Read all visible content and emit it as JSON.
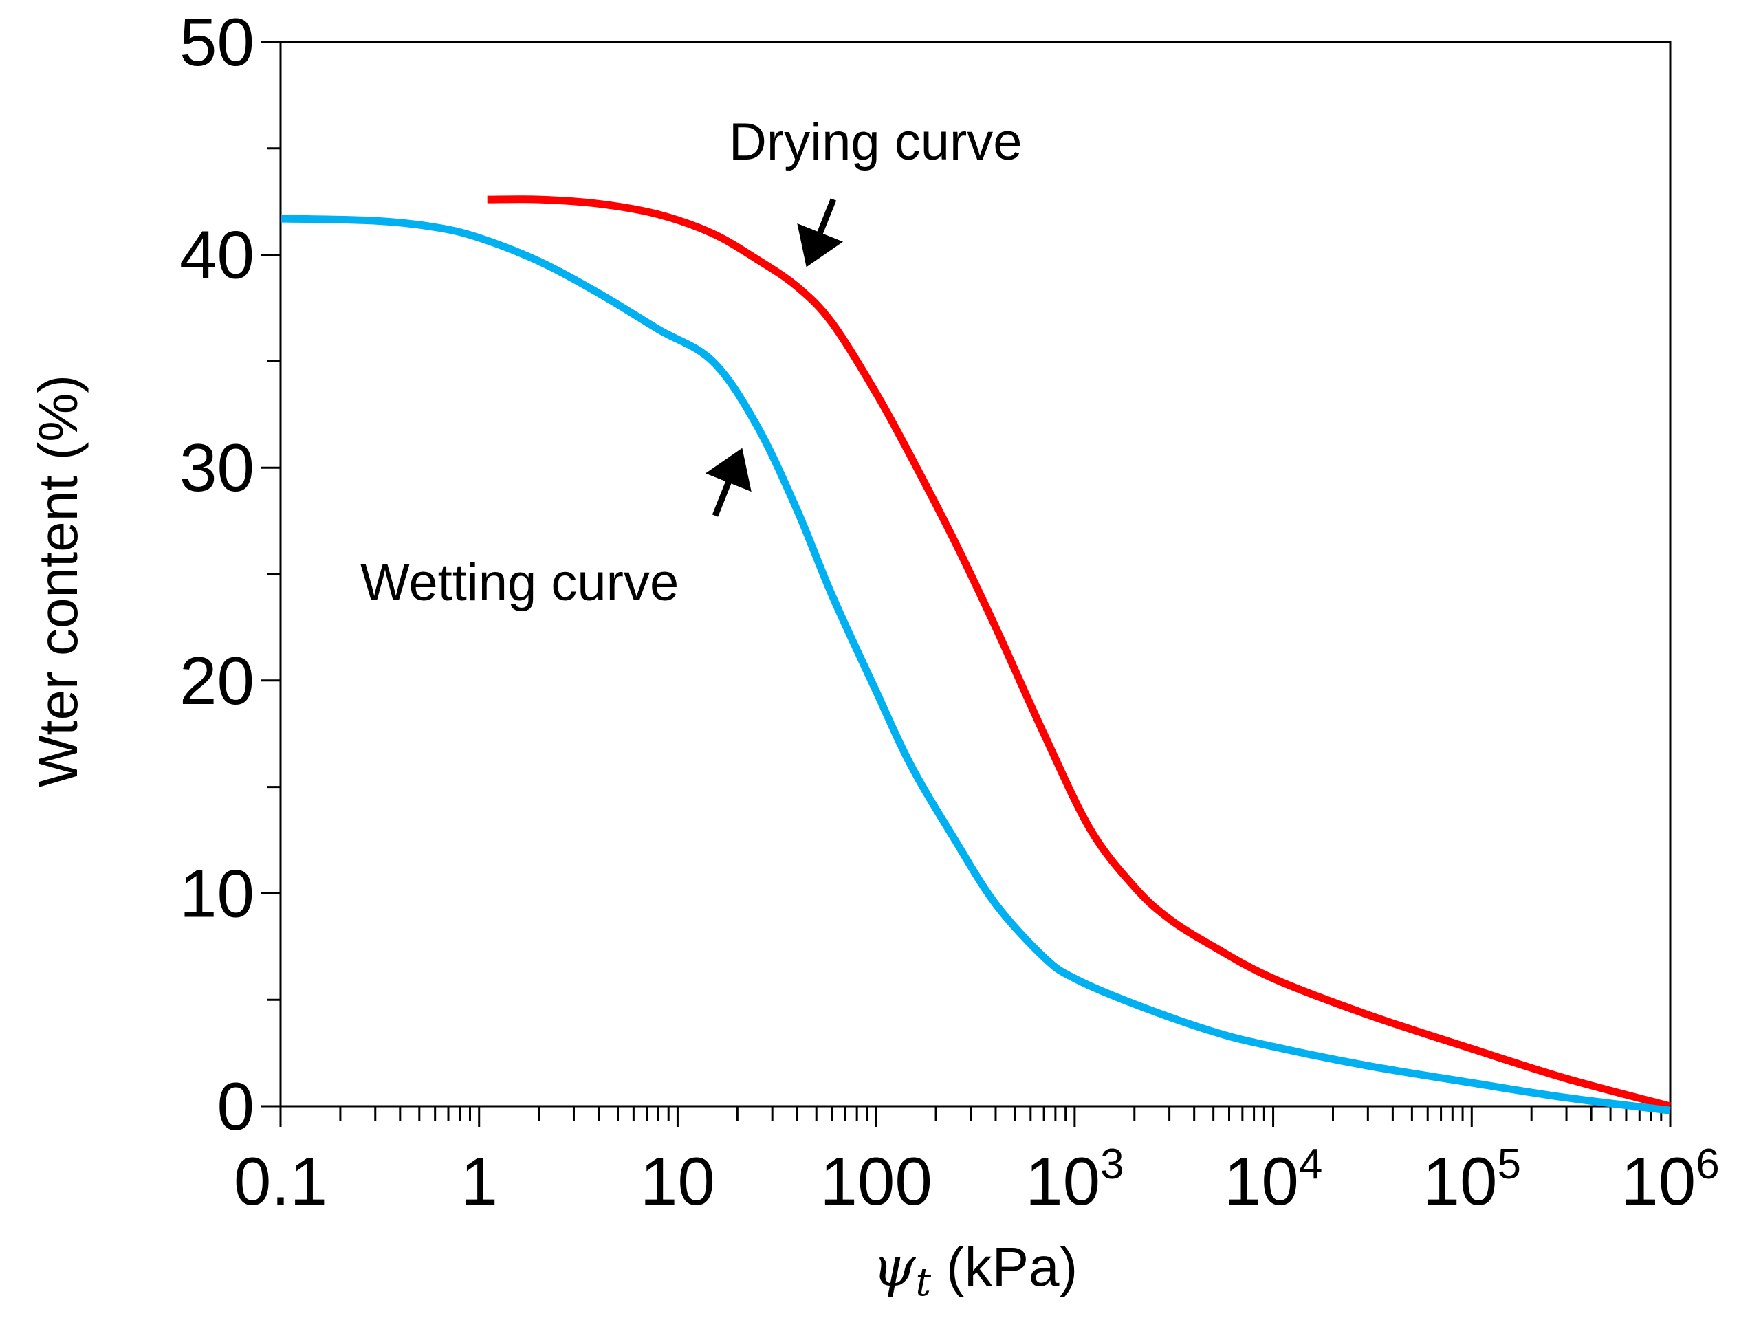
{
  "chart_data": {
    "type": "line",
    "title": "",
    "xlabel": {
      "symbol": "ψ",
      "subscript": "t",
      "unit": "(kPa)"
    },
    "ylabel": "Wter content (%)",
    "xscale": "log",
    "xlim": [
      0.1,
      1000000
    ],
    "ylim": [
      0,
      50
    ],
    "grid": false,
    "x_tick_labels": [
      {
        "base": "0.1",
        "exp": ""
      },
      {
        "base": "1",
        "exp": ""
      },
      {
        "base": "10",
        "exp": ""
      },
      {
        "base": "100",
        "exp": ""
      },
      {
        "base": "10",
        "exp": "3"
      },
      {
        "base": "10",
        "exp": "4"
      },
      {
        "base": "10",
        "exp": "5"
      },
      {
        "base": "10",
        "exp": "6"
      }
    ],
    "x_tick_values": [
      0.1,
      1,
      10,
      100,
      1000,
      10000,
      100000,
      1000000
    ],
    "y_ticks": [
      "0",
      "10",
      "20",
      "30",
      "40",
      "50"
    ],
    "y_tick_values": [
      0,
      10,
      20,
      30,
      40,
      50
    ],
    "series": [
      {
        "name": "Drying curve",
        "color": "#ff0000",
        "points": [
          [
            1.1,
            42.6
          ],
          [
            2,
            42.6
          ],
          [
            4,
            42.4
          ],
          [
            8,
            41.9
          ],
          [
            15,
            41.0
          ],
          [
            25,
            39.8
          ],
          [
            40,
            38.5
          ],
          [
            60,
            36.8
          ],
          [
            100,
            33.5
          ],
          [
            150,
            30.5
          ],
          [
            250,
            26.5
          ],
          [
            400,
            22.5
          ],
          [
            700,
            17.5
          ],
          [
            1200,
            13.0
          ],
          [
            2000,
            10.3
          ],
          [
            3000,
            8.8
          ],
          [
            5000,
            7.5
          ],
          [
            10000,
            6.0
          ],
          [
            30000,
            4.3
          ],
          [
            100000,
            2.7
          ],
          [
            300000,
            1.3
          ],
          [
            1000000,
            0.0
          ]
        ]
      },
      {
        "name": "Wetting curve",
        "color": "#00b0f0",
        "points": [
          [
            0.1,
            41.7
          ],
          [
            0.3,
            41.6
          ],
          [
            0.6,
            41.3
          ],
          [
            1,
            40.8
          ],
          [
            2,
            39.7
          ],
          [
            4,
            38.2
          ],
          [
            8,
            36.5
          ],
          [
            15,
            35.0
          ],
          [
            25,
            32.0
          ],
          [
            40,
            28.0
          ],
          [
            60,
            24.0
          ],
          [
            100,
            19.5
          ],
          [
            150,
            16.0
          ],
          [
            250,
            12.5
          ],
          [
            400,
            9.5
          ],
          [
            700,
            7.0
          ],
          [
            1000,
            6.0
          ],
          [
            2000,
            4.8
          ],
          [
            5000,
            3.5
          ],
          [
            10000,
            2.8
          ],
          [
            30000,
            1.9
          ],
          [
            100000,
            1.1
          ],
          [
            300000,
            0.4
          ],
          [
            1000000,
            -0.2
          ]
        ]
      }
    ],
    "annotations": [
      {
        "text": "Drying curve",
        "arrow_points_to": [
          45,
          39.5
        ]
      },
      {
        "text": "Wetting curve",
        "arrow_points_to": [
          23,
          30.8
        ]
      }
    ]
  }
}
